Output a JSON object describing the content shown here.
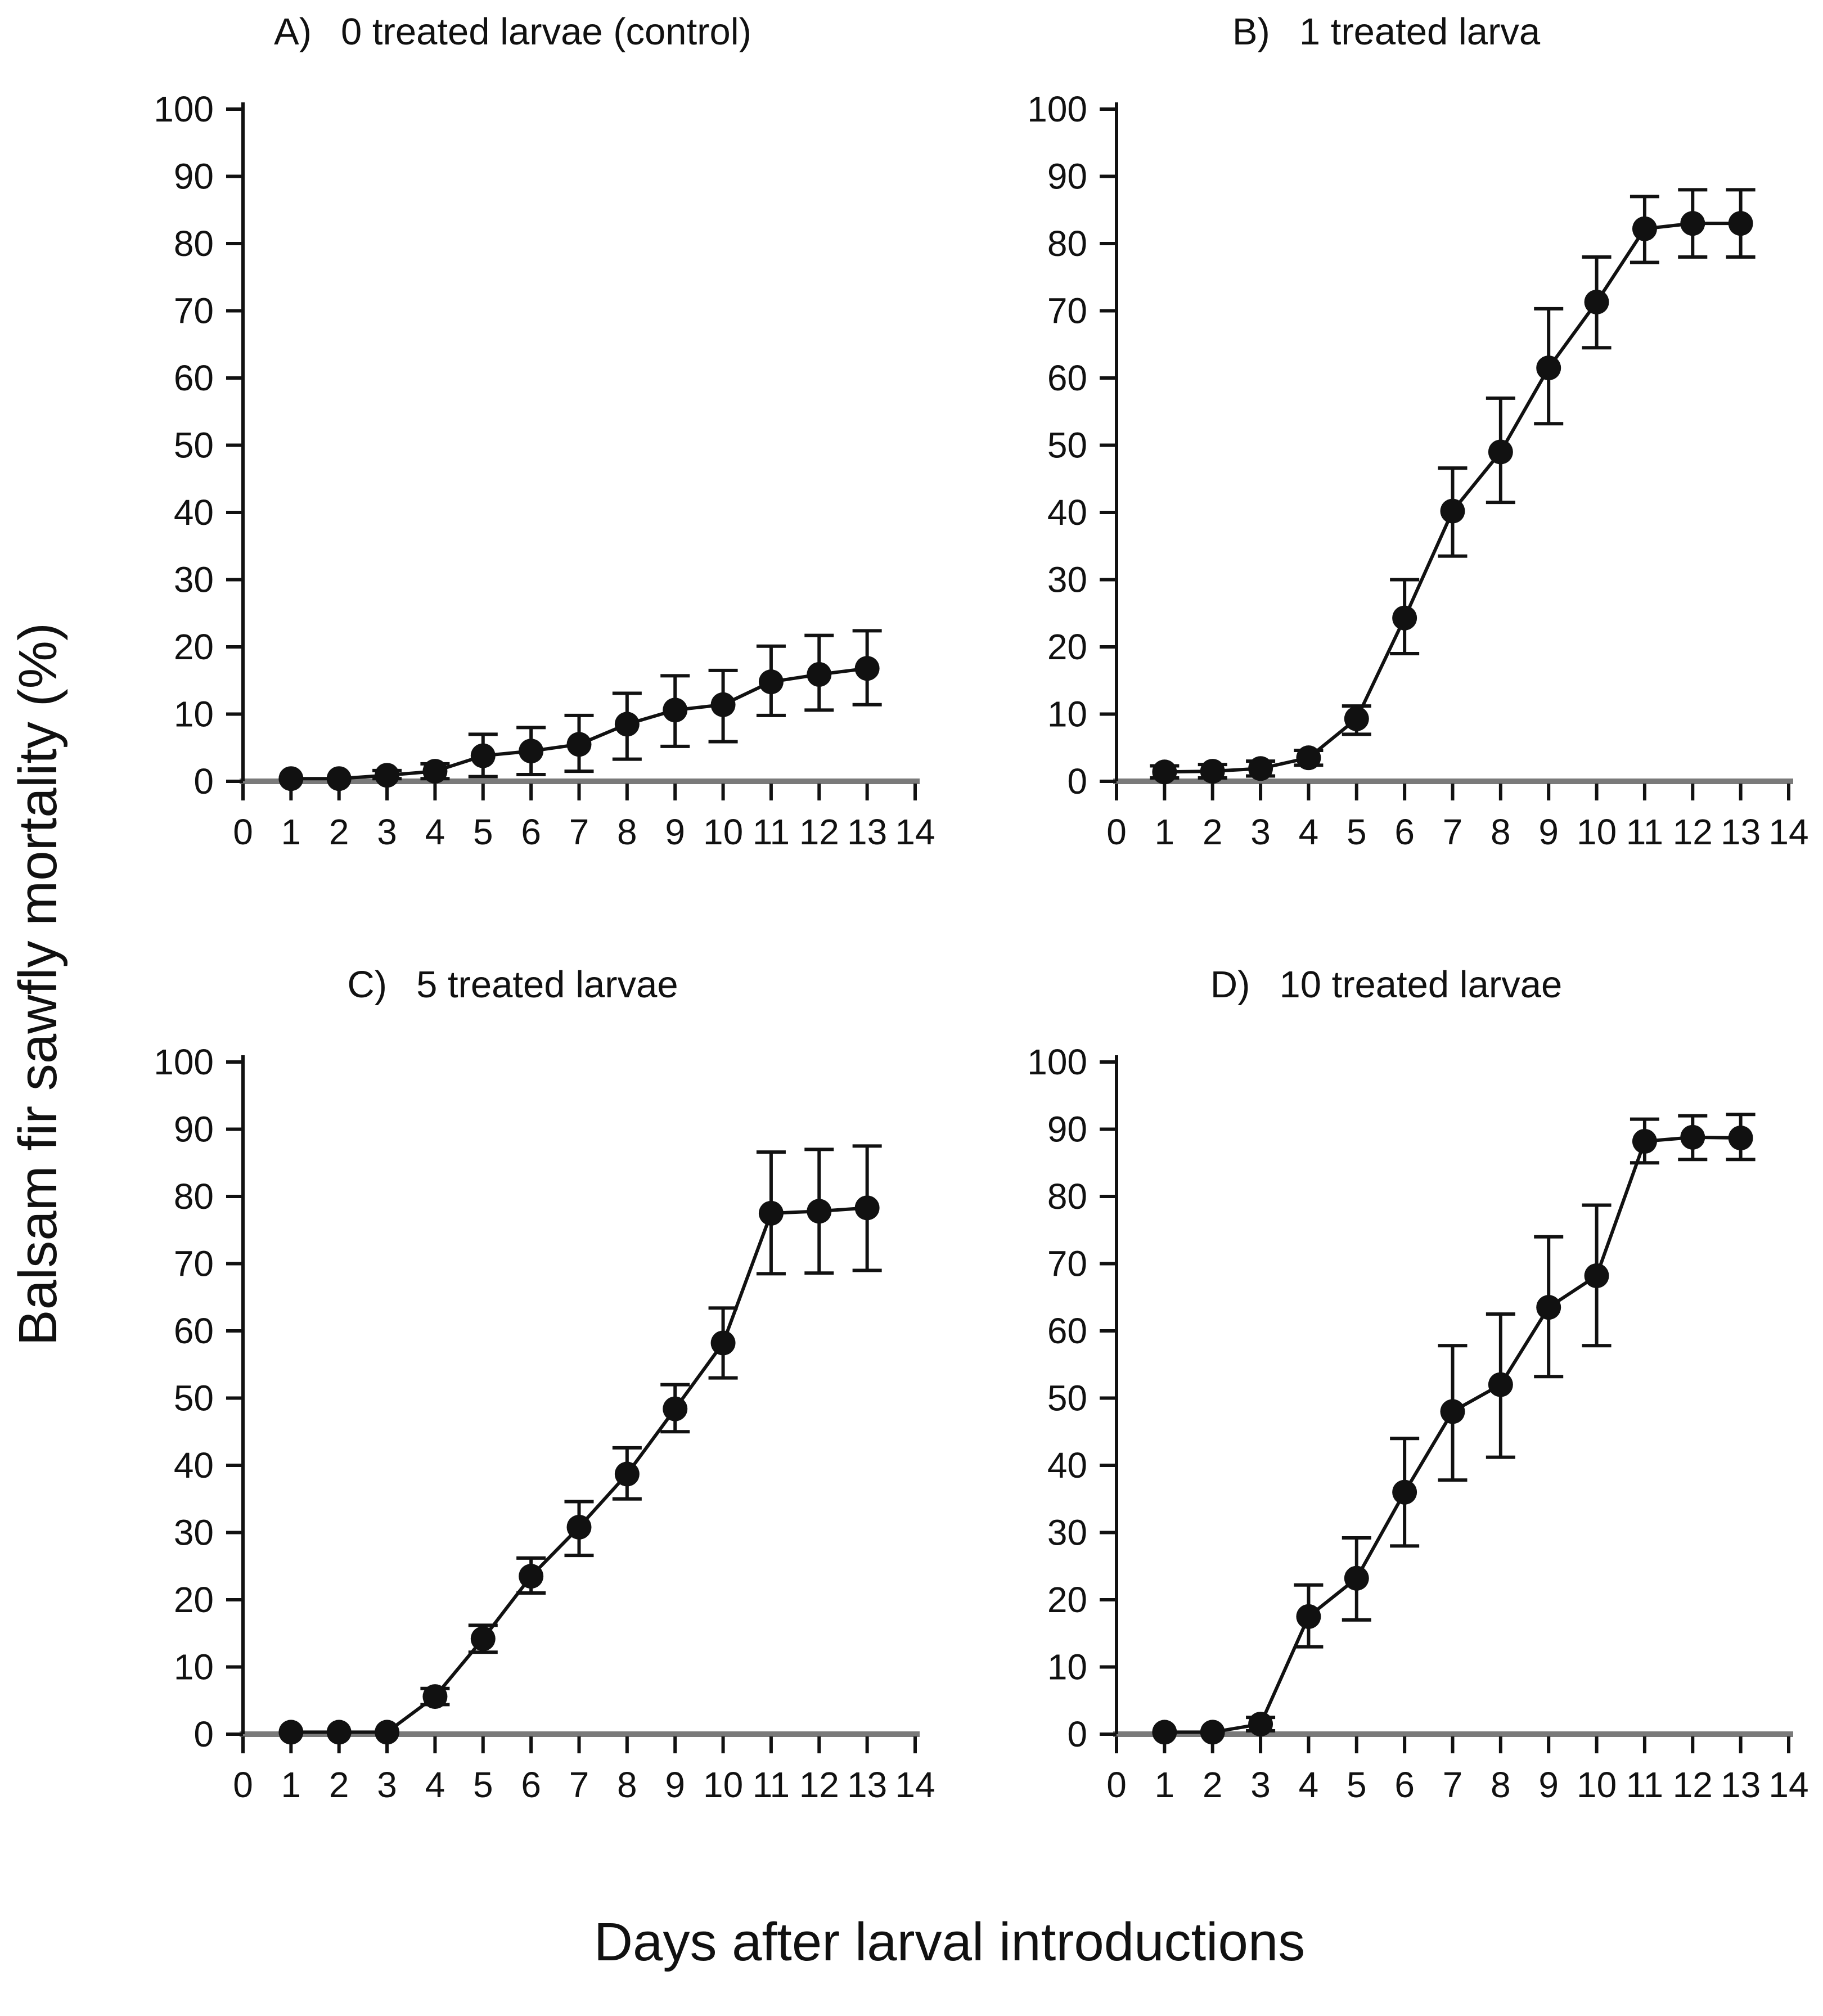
{
  "figure": {
    "ylabel": "Balsam fir sawfly mortality (%)",
    "xlabel": "Days after larval introductions",
    "background_color": "#ffffff",
    "axis_color": "#111111",
    "baseline_color": "#7a7a7a",
    "marker_color": "#111111"
  },
  "chart_data": [
    {
      "type": "line",
      "panel_letter": "A)",
      "title": "0 treated larvae (control)",
      "xlabel": "Days after larval introductions",
      "ylabel": "Balsam fir sawfly mortality (%)",
      "xlim": [
        0,
        14
      ],
      "ylim": [
        0,
        100
      ],
      "x_ticks": [
        0,
        1,
        2,
        3,
        4,
        5,
        6,
        7,
        8,
        9,
        10,
        11,
        12,
        13,
        14
      ],
      "y_ticks": [
        0,
        10,
        20,
        30,
        40,
        50,
        60,
        70,
        80,
        90,
        100
      ],
      "marker": "filled-circle",
      "error_bars": true,
      "grid": false,
      "legend": "none",
      "x": [
        1,
        2,
        3,
        4,
        5,
        6,
        7,
        8,
        9,
        10,
        11,
        12,
        13
      ],
      "values": [
        0.4,
        0.4,
        0.9,
        1.5,
        3.8,
        4.5,
        5.5,
        8.5,
        10.6,
        11.4,
        14.8,
        15.9,
        16.8
      ],
      "error_low": [
        0.4,
        0.4,
        0.4,
        0.4,
        0.7,
        1.0,
        1.5,
        3.3,
        5.2,
        5.9,
        9.8,
        10.6,
        11.4
      ],
      "error_high": [
        0.4,
        0.4,
        1.6,
        2.6,
        7.0,
        8.0,
        9.8,
        13.1,
        15.7,
        16.5,
        20.1,
        21.7,
        22.4
      ]
    },
    {
      "type": "line",
      "panel_letter": "B)",
      "title": "1 treated larva",
      "xlabel": "Days after larval introductions",
      "ylabel": "Balsam fir sawfly mortality (%)",
      "xlim": [
        0,
        14
      ],
      "ylim": [
        0,
        100
      ],
      "x_ticks": [
        0,
        1,
        2,
        3,
        4,
        5,
        6,
        7,
        8,
        9,
        10,
        11,
        12,
        13,
        14
      ],
      "y_ticks": [
        0,
        10,
        20,
        30,
        40,
        50,
        60,
        70,
        80,
        90,
        100
      ],
      "marker": "filled-circle",
      "error_bars": true,
      "grid": false,
      "legend": "none",
      "x": [
        1,
        2,
        3,
        4,
        5,
        6,
        7,
        8,
        9,
        10,
        11,
        12,
        13
      ],
      "values": [
        1.4,
        1.5,
        1.9,
        3.5,
        9.3,
        24.3,
        40.2,
        49.0,
        61.5,
        71.3,
        82.2,
        83.0,
        83.0
      ],
      "error_low": [
        0.5,
        0.5,
        0.8,
        2.4,
        7.0,
        19.0,
        33.5,
        41.5,
        53.2,
        64.5,
        77.2,
        78.0,
        78.0
      ],
      "error_high": [
        2.3,
        2.5,
        3.0,
        4.6,
        11.2,
        30.0,
        46.6,
        57.0,
        70.3,
        78.0,
        87.0,
        88.0,
        88.0
      ]
    },
    {
      "type": "line",
      "panel_letter": "C)",
      "title": "5 treated larvae",
      "xlabel": "Days after larval introductions",
      "ylabel": "Balsam fir sawfly mortality (%)",
      "xlim": [
        0,
        14
      ],
      "ylim": [
        0,
        100
      ],
      "x_ticks": [
        0,
        1,
        2,
        3,
        4,
        5,
        6,
        7,
        8,
        9,
        10,
        11,
        12,
        13,
        14
      ],
      "y_ticks": [
        0,
        10,
        20,
        30,
        40,
        50,
        60,
        70,
        80,
        90,
        100
      ],
      "marker": "filled-circle",
      "error_bars": true,
      "grid": false,
      "legend": "none",
      "x": [
        1,
        2,
        3,
        4,
        5,
        6,
        7,
        8,
        9,
        10,
        11,
        12,
        13
      ],
      "values": [
        0.3,
        0.3,
        0.3,
        5.6,
        14.2,
        23.5,
        30.8,
        38.7,
        48.4,
        58.2,
        77.5,
        77.8,
        78.3
      ],
      "error_low": [
        0.3,
        0.3,
        0.3,
        4.4,
        12.2,
        21.0,
        26.6,
        35.0,
        45.0,
        53.0,
        68.5,
        68.6,
        69.0
      ],
      "error_high": [
        0.3,
        0.3,
        0.3,
        6.8,
        16.2,
        26.2,
        34.6,
        42.6,
        52.0,
        63.4,
        86.6,
        87.0,
        87.5
      ]
    },
    {
      "type": "line",
      "panel_letter": "D)",
      "title": "10 treated larvae",
      "xlabel": "Days after larval introductions",
      "ylabel": "Balsam fir sawfly mortality (%)",
      "xlim": [
        0,
        14
      ],
      "ylim": [
        0,
        100
      ],
      "x_ticks": [
        0,
        1,
        2,
        3,
        4,
        5,
        6,
        7,
        8,
        9,
        10,
        11,
        12,
        13,
        14
      ],
      "y_ticks": [
        0,
        10,
        20,
        30,
        40,
        50,
        60,
        70,
        80,
        90,
        100
      ],
      "marker": "filled-circle",
      "error_bars": true,
      "grid": false,
      "legend": "none",
      "x": [
        1,
        2,
        3,
        4,
        5,
        6,
        7,
        8,
        9,
        10,
        11,
        12,
        13
      ],
      "values": [
        0.3,
        0.3,
        1.5,
        17.5,
        23.2,
        36.0,
        48.0,
        52.0,
        63.5,
        68.2,
        88.2,
        88.8,
        88.7
      ],
      "error_low": [
        0.3,
        0.3,
        0.5,
        13.0,
        17.0,
        28.0,
        37.8,
        41.2,
        53.2,
        57.8,
        85.0,
        85.5,
        85.5
      ],
      "error_high": [
        0.3,
        0.3,
        2.5,
        22.2,
        29.2,
        44.0,
        57.8,
        62.5,
        74.0,
        78.7,
        91.5,
        92.0,
        92.2
      ]
    }
  ]
}
